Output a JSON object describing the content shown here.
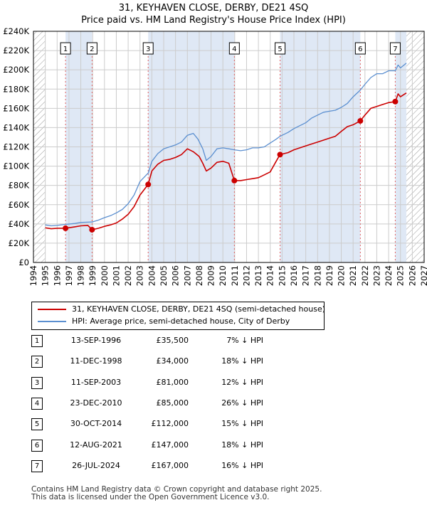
{
  "title": {
    "line1": "31, KEYHAVEN CLOSE, DERBY, DE21 4SQ",
    "line2": "Price paid vs. HM Land Registry's House Price Index (HPI)"
  },
  "legend": {
    "property_label": "31, KEYHAVEN CLOSE, DERBY, DE21 4SQ (semi-detached house)",
    "hpi_label": "HPI: Average price, semi-detached house, City of Derby"
  },
  "colors": {
    "property": "#cc0000",
    "hpi": "#5b8fd0",
    "shade": "#dfe8f5",
    "grid": "#cccccc",
    "marker_line": "#e06060",
    "hatch": "#999999"
  },
  "chart_data": {
    "type": "line",
    "xlim": [
      1994,
      2027
    ],
    "ylim": [
      0,
      240000
    ],
    "x_ticks": [
      "1994",
      "1995",
      "1996",
      "1997",
      "1998",
      "1999",
      "2000",
      "2001",
      "2002",
      "2003",
      "2004",
      "2005",
      "2006",
      "2007",
      "2008",
      "2009",
      "2010",
      "2011",
      "2012",
      "2013",
      "2014",
      "2015",
      "2016",
      "2017",
      "2018",
      "2019",
      "2020",
      "2021",
      "2022",
      "2023",
      "2024",
      "2025",
      "2026",
      "2027"
    ],
    "y_ticks": [
      {
        "value": 0,
        "label": "£0"
      },
      {
        "value": 20000,
        "label": "£20K"
      },
      {
        "value": 40000,
        "label": "£40K"
      },
      {
        "value": 60000,
        "label": "£60K"
      },
      {
        "value": 80000,
        "label": "£80K"
      },
      {
        "value": 100000,
        "label": "£100K"
      },
      {
        "value": 120000,
        "label": "£120K"
      },
      {
        "value": 140000,
        "label": "£140K"
      },
      {
        "value": 160000,
        "label": "£160K"
      },
      {
        "value": 180000,
        "label": "£180K"
      },
      {
        "value": 200000,
        "label": "£200K"
      },
      {
        "value": 220000,
        "label": "£220K"
      },
      {
        "value": 240000,
        "label": "£240K"
      }
    ],
    "data_end_year": 2025.5,
    "series": [
      {
        "name": "HPI: Average price, semi-detached house, City of Derby",
        "x": [
          1995.0,
          1995.5,
          1996.0,
          1996.7,
          1997.5,
          1998.0,
          1998.95,
          1999.5,
          2000.0,
          2000.5,
          2001.0,
          2001.5,
          2002.0,
          2002.5,
          2003.0,
          2003.7,
          2004.0,
          2004.5,
          2005.0,
          2005.5,
          2006.0,
          2006.5,
          2007.0,
          2007.5,
          2007.9,
          2008.3,
          2008.6,
          2009.0,
          2009.5,
          2010.0,
          2010.5,
          2010.97,
          2011.5,
          2012.0,
          2012.5,
          2013.0,
          2013.5,
          2014.0,
          2014.5,
          2014.83,
          2015.5,
          2016.0,
          2016.5,
          2017.0,
          2017.5,
          2018.0,
          2018.5,
          2019.0,
          2019.5,
          2020.0,
          2020.5,
          2021.0,
          2021.61,
          2022.0,
          2022.5,
          2023.0,
          2023.5,
          2024.0,
          2024.56,
          2024.8,
          2025.0,
          2025.5
        ],
        "values": [
          39000,
          38000,
          38500,
          39500,
          40500,
          41500,
          42000,
          44000,
          46500,
          48500,
          51500,
          55000,
          61000,
          70000,
          84000,
          93000,
          105000,
          113000,
          118000,
          120000,
          122000,
          125000,
          132000,
          134000,
          128000,
          118000,
          106000,
          110000,
          118000,
          119000,
          118000,
          117000,
          116000,
          117000,
          119000,
          119000,
          120000,
          124000,
          128000,
          131000,
          135000,
          139000,
          142000,
          145000,
          150000,
          153000,
          156000,
          157000,
          158000,
          161000,
          165000,
          172000,
          179000,
          185000,
          192000,
          196000,
          196000,
          199000,
          199000,
          205000,
          202000,
          207000
        ]
      },
      {
        "name": "31, KEYHAVEN CLOSE, DERBY, DE21 4SQ (semi-detached house)",
        "x": [
          1995.0,
          1995.5,
          1996.0,
          1996.71,
          1997.5,
          1998.0,
          1998.6,
          1998.95,
          1999.5,
          2000.0,
          2000.5,
          2001.0,
          2001.5,
          2002.0,
          2002.5,
          2003.0,
          2003.69,
          2004.0,
          2004.5,
          2005.0,
          2005.5,
          2006.0,
          2006.5,
          2007.0,
          2007.5,
          2008.0,
          2008.3,
          2008.6,
          2009.0,
          2009.5,
          2010.0,
          2010.5,
          2010.97,
          2011.5,
          2012.0,
          2012.5,
          2013.0,
          2013.5,
          2014.0,
          2014.5,
          2014.83,
          2015.5,
          2016.0,
          2016.5,
          2017.0,
          2017.5,
          2018.0,
          2018.5,
          2019.0,
          2019.5,
          2020.0,
          2020.5,
          2021.0,
          2021.61,
          2022.0,
          2022.5,
          2023.0,
          2023.5,
          2024.0,
          2024.56,
          2024.8,
          2025.0,
          2025.5
        ],
        "values": [
          36000,
          35000,
          35500,
          35500,
          37000,
          38000,
          38500,
          34000,
          35500,
          37500,
          39000,
          41000,
          45000,
          50000,
          58000,
          70000,
          81000,
          95000,
          102000,
          106000,
          107000,
          109000,
          112000,
          118000,
          115000,
          110000,
          103000,
          95000,
          98000,
          104000,
          105000,
          103000,
          85000,
          85000,
          86000,
          87000,
          88000,
          91000,
          94000,
          105000,
          112000,
          114000,
          117000,
          119000,
          121000,
          123000,
          125000,
          127000,
          129000,
          131000,
          136000,
          141000,
          143000,
          147000,
          153000,
          160000,
          162000,
          164000,
          166000,
          167000,
          175000,
          172000,
          176000
        ]
      }
    ],
    "sales": [
      {
        "id": "1",
        "x": 1996.71,
        "value": 35500,
        "date": "13-SEP-1996",
        "price": "£35,500",
        "hpi": "7% ↓ HPI"
      },
      {
        "id": "2",
        "x": 1998.95,
        "value": 34000,
        "date": "11-DEC-1998",
        "price": "£34,000",
        "hpi": "18% ↓ HPI"
      },
      {
        "id": "3",
        "x": 2003.69,
        "value": 81000,
        "date": "11-SEP-2003",
        "price": "£81,000",
        "hpi": "12% ↓ HPI"
      },
      {
        "id": "4",
        "x": 2010.97,
        "value": 85000,
        "date": "23-DEC-2010",
        "price": "£85,000",
        "hpi": "26% ↓ HPI"
      },
      {
        "id": "5",
        "x": 2014.83,
        "value": 112000,
        "date": "30-OCT-2014",
        "price": "£112,000",
        "hpi": "15% ↓ HPI"
      },
      {
        "id": "6",
        "x": 2021.61,
        "value": 147000,
        "date": "12-AUG-2021",
        "price": "£147,000",
        "hpi": "18% ↓ HPI"
      },
      {
        "id": "7",
        "x": 2024.56,
        "value": 167000,
        "date": "26-JUL-2024",
        "price": "£167,000",
        "hpi": "16% ↓ HPI"
      }
    ]
  },
  "footer": {
    "line1": "Contains HM Land Registry data © Crown copyright and database right 2025.",
    "line2": "This data is licensed under the Open Government Licence v3.0."
  }
}
